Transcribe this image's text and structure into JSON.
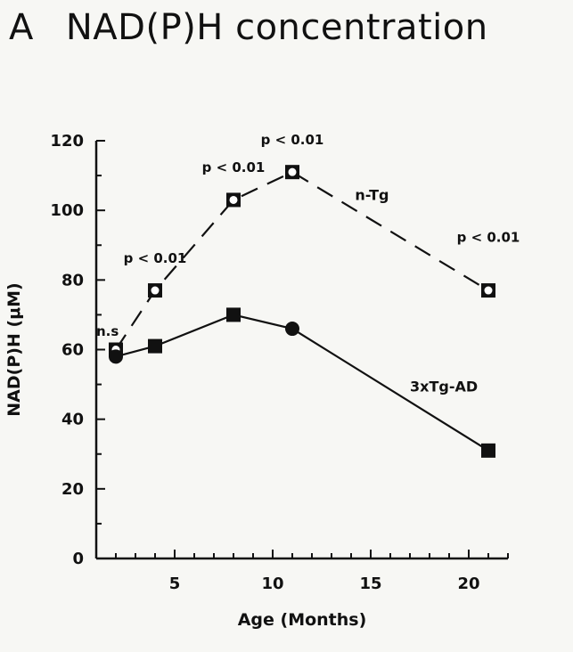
{
  "panel": {
    "letter": "A",
    "title": "NAD(P)H concentration"
  },
  "chart_data": {
    "type": "line",
    "title": "NAD(P)H concentration",
    "xlabel": "Age (Months)",
    "ylabel": "NAD(P)H (μM)",
    "xlim": [
      1,
      22
    ],
    "ylim": [
      0,
      120
    ],
    "xticks": [
      5,
      10,
      15,
      20
    ],
    "yticks": [
      0,
      20,
      40,
      60,
      80,
      100,
      120
    ],
    "grid": false,
    "legend": "inline labels",
    "series": [
      {
        "name": "n-Tg",
        "style": "dashed",
        "marker": "open",
        "color": "#111111",
        "x": [
          2,
          4,
          8,
          11,
          21
        ],
        "y": [
          60,
          77,
          103,
          111,
          77
        ]
      },
      {
        "name": "3xTg-AD",
        "style": "solid",
        "marker": "filled",
        "color": "#111111",
        "x": [
          2,
          4,
          8,
          11,
          21
        ],
        "y": [
          58,
          61,
          70,
          66,
          31
        ]
      }
    ],
    "annotations": [
      {
        "text": "n.s",
        "x": 2,
        "y": 64
      },
      {
        "text": "p < 0.01",
        "x": 4,
        "y": 85
      },
      {
        "text": "p < 0.01",
        "x": 8,
        "y": 111
      },
      {
        "text": "p < 0.01",
        "x": 11,
        "y": 119
      },
      {
        "text": "p < 0.01",
        "x": 21,
        "y": 91
      }
    ]
  }
}
